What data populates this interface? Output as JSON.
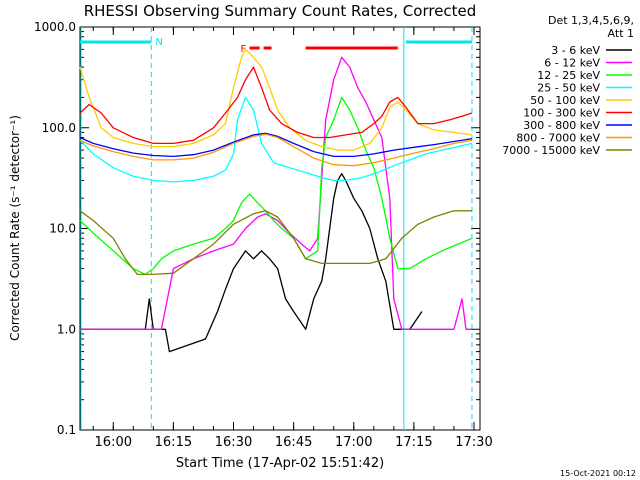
{
  "chart_data": {
    "type": "line",
    "title": "RHESSI Observing Summary Count Rates, Corrected",
    "xlabel": "Start Time (17-Apr-02 15:51:42)",
    "ylabel": "Corrected Count Rate (s⁻¹ detector⁻¹)",
    "y_scale": "log",
    "ylim": [
      0.1,
      1000
    ],
    "xlim_minutes": [
      "15:51:42",
      "17:31:30"
    ],
    "x_ticks": [
      "16:00",
      "16:15",
      "16:30",
      "16:45",
      "17:00",
      "17:15",
      "17:30"
    ],
    "y_ticks": [
      "0.1",
      "1.0",
      "10.0",
      "100.0",
      "1000.0"
    ],
    "detector_info": "Det 1,3,4,5,6,9,",
    "attenuator_info": "Att 1",
    "timestamp": "15-Oct-2021 00:12",
    "night_marker": "N",
    "flare_marker": "F",
    "night_intervals": [
      [
        "15:51:42",
        "16:09:30"
      ],
      [
        "17:13:00",
        "17:29:30"
      ]
    ],
    "flare_intervals": [
      [
        "16:34:00",
        "16:36:30"
      ],
      [
        "16:37:30",
        "16:39:30"
      ],
      [
        "16:48:00",
        "17:11:00"
      ]
    ],
    "vertical_markers": [
      {
        "time": "16:09:30",
        "style": "dashed"
      },
      {
        "time": "17:12:30",
        "style": "solid"
      },
      {
        "time": "17:29:30",
        "style": "dashed"
      }
    ],
    "series": [
      {
        "name": "3 - 6 keV",
        "color": "#000000",
        "points": [
          [
            "15:51:42",
            1.0
          ],
          [
            "16:00",
            1.0
          ],
          [
            "16:08",
            1.0
          ],
          [
            "16:09",
            2.0
          ],
          [
            "16:10",
            1.0
          ],
          [
            "16:11",
            1.0
          ],
          [
            "16:12",
            1.0
          ],
          [
            "16:13",
            1.0
          ],
          [
            "16:14",
            0.6
          ],
          [
            "16:23",
            0.8
          ],
          [
            "16:26",
            1.5
          ],
          [
            "16:28",
            2.5
          ],
          [
            "16:30",
            4.0
          ],
          [
            "16:33",
            6.0
          ],
          [
            "16:35",
            5.0
          ],
          [
            "16:37",
            6.0
          ],
          [
            "16:39",
            5.0
          ],
          [
            "16:41",
            4.0
          ],
          [
            "16:43",
            2.0
          ],
          [
            "16:45",
            1.5
          ],
          [
            "16:48",
            1.0
          ],
          [
            "16:50",
            2.0
          ],
          [
            "16:52",
            3.0
          ],
          [
            "16:53",
            5.0
          ],
          [
            "16:54",
            10.0
          ],
          [
            "16:55",
            20.0
          ],
          [
            "16:56",
            30.0
          ],
          [
            "16:57",
            35.0
          ],
          [
            "16:58",
            30.0
          ],
          [
            "17:00",
            20.0
          ],
          [
            "17:02",
            15.0
          ],
          [
            "17:04",
            10.0
          ],
          [
            "17:06",
            5.0
          ],
          [
            "17:08",
            3.0
          ],
          [
            "17:10",
            1.0
          ],
          [
            "17:14",
            1.0
          ],
          [
            "17:17",
            1.5
          ]
        ]
      },
      {
        "name": "6 - 12 keV",
        "color": "#ff00ff",
        "points": [
          [
            "15:51:42",
            1.0
          ],
          [
            "16:08",
            1.0
          ],
          [
            "16:10",
            1.0
          ],
          [
            "16:12",
            1.0
          ],
          [
            "16:15",
            4.0
          ],
          [
            "16:20",
            5.0
          ],
          [
            "16:25",
            6.0
          ],
          [
            "16:30",
            7.0
          ],
          [
            "16:33",
            10.0
          ],
          [
            "16:36",
            13.0
          ],
          [
            "16:38",
            14.0
          ],
          [
            "16:41",
            12.0
          ],
          [
            "16:44",
            9.0
          ],
          [
            "16:47",
            7.0
          ],
          [
            "16:49",
            6.0
          ],
          [
            "16:51",
            8.0
          ],
          [
            "16:53",
            120.0
          ],
          [
            "16:55",
            300.0
          ],
          [
            "16:57",
            500.0
          ],
          [
            "16:59",
            400.0
          ],
          [
            "17:01",
            250.0
          ],
          [
            "17:03",
            180.0
          ],
          [
            "17:05",
            120.0
          ],
          [
            "17:07",
            80.0
          ],
          [
            "17:09",
            20.0
          ],
          [
            "17:10",
            2.0
          ],
          [
            "17:12",
            1.0
          ],
          [
            "17:15",
            1.0
          ],
          [
            "17:25",
            1.0
          ],
          [
            "17:27",
            2.0
          ],
          [
            "17:28",
            1.0
          ],
          [
            "17:29:30",
            1.0
          ]
        ]
      },
      {
        "name": "12 - 25 keV",
        "color": "#00ff00",
        "points": [
          [
            "15:51:42",
            12.0
          ],
          [
            "15:55",
            9.0
          ],
          [
            "16:00",
            6.0
          ],
          [
            "16:05",
            4.0
          ],
          [
            "16:08",
            3.5
          ],
          [
            "16:10",
            4.0
          ],
          [
            "16:12",
            5.0
          ],
          [
            "16:15",
            6.0
          ],
          [
            "16:20",
            7.0
          ],
          [
            "16:25",
            8.0
          ],
          [
            "16:28",
            10.0
          ],
          [
            "16:30",
            12.0
          ],
          [
            "16:32",
            18.0
          ],
          [
            "16:34",
            22.0
          ],
          [
            "16:36",
            18.0
          ],
          [
            "16:38",
            15.0
          ],
          [
            "16:40",
            12.0
          ],
          [
            "16:42",
            10.0
          ],
          [
            "16:45",
            8.0
          ],
          [
            "16:48",
            5.0
          ],
          [
            "16:51",
            6.0
          ],
          [
            "16:52",
            40.0
          ],
          [
            "16:53",
            80.0
          ],
          [
            "16:55",
            120.0
          ],
          [
            "16:57",
            200.0
          ],
          [
            "16:59",
            150.0
          ],
          [
            "17:01",
            100.0
          ],
          [
            "17:03",
            60.0
          ],
          [
            "17:05",
            40.0
          ],
          [
            "17:07",
            20.0
          ],
          [
            "17:09",
            8.0
          ],
          [
            "17:11",
            4.0
          ],
          [
            "17:14",
            4.0
          ],
          [
            "17:18",
            5.0
          ],
          [
            "17:22",
            6.0
          ],
          [
            "17:26",
            7.0
          ],
          [
            "17:29:30",
            8.0
          ]
        ]
      },
      {
        "name": "25 - 50 keV",
        "color": "#00ffff",
        "points": [
          [
            "15:51:42",
            75.0
          ],
          [
            "15:55",
            55.0
          ],
          [
            "16:00",
            40.0
          ],
          [
            "16:05",
            33.0
          ],
          [
            "16:10",
            30.0
          ],
          [
            "16:15",
            29.0
          ],
          [
            "16:20",
            30.0
          ],
          [
            "16:25",
            33.0
          ],
          [
            "16:28",
            38.0
          ],
          [
            "16:30",
            55.0
          ],
          [
            "16:31",
            120.0
          ],
          [
            "16:33",
            200.0
          ],
          [
            "16:35",
            150.0
          ],
          [
            "16:37",
            70.0
          ],
          [
            "16:40",
            45.0
          ],
          [
            "16:44",
            40.0
          ],
          [
            "16:48",
            36.0
          ],
          [
            "16:52",
            32.0
          ],
          [
            "16:55",
            30.0
          ],
          [
            "16:58",
            30.0
          ],
          [
            "17:02",
            32.0
          ],
          [
            "17:06",
            36.0
          ],
          [
            "17:10",
            42.0
          ],
          [
            "17:14",
            48.0
          ],
          [
            "17:18",
            55.0
          ],
          [
            "17:22",
            60.0
          ],
          [
            "17:26",
            65.0
          ],
          [
            "17:29:30",
            70.0
          ]
        ]
      },
      {
        "name": "50 - 100 keV",
        "color": "#ffcc00",
        "points": [
          [
            "15:51:42",
            400.0
          ],
          [
            "15:54",
            200.0
          ],
          [
            "15:57",
            100.0
          ],
          [
            "16:00",
            80.0
          ],
          [
            "16:05",
            70.0
          ],
          [
            "16:10",
            65.0
          ],
          [
            "16:15",
            65.0
          ],
          [
            "16:20",
            70.0
          ],
          [
            "16:25",
            85.0
          ],
          [
            "16:28",
            110.0
          ],
          [
            "16:30",
            250.0
          ],
          [
            "16:32",
            500.0
          ],
          [
            "16:33",
            600.0
          ],
          [
            "16:35",
            500.0
          ],
          [
            "16:37",
            400.0
          ],
          [
            "16:39",
            250.0
          ],
          [
            "16:41",
            150.0
          ],
          [
            "16:44",
            100.0
          ],
          [
            "16:48",
            75.0
          ],
          [
            "16:52",
            65.0
          ],
          [
            "16:56",
            60.0
          ],
          [
            "17:00",
            60.0
          ],
          [
            "17:04",
            70.0
          ],
          [
            "17:07",
            100.0
          ],
          [
            "17:09",
            160.0
          ],
          [
            "17:11",
            180.0
          ],
          [
            "17:13",
            150.0
          ],
          [
            "17:16",
            110.0
          ],
          [
            "17:20",
            95.0
          ],
          [
            "17:25",
            90.0
          ],
          [
            "17:29:30",
            85.0
          ]
        ]
      },
      {
        "name": "100 - 300 keV",
        "color": "#ff0000",
        "points": [
          [
            "15:51:42",
            140.0
          ],
          [
            "15:54",
            170.0
          ],
          [
            "15:57",
            140.0
          ],
          [
            "16:00",
            100.0
          ],
          [
            "16:05",
            80.0
          ],
          [
            "16:10",
            70.0
          ],
          [
            "16:15",
            70.0
          ],
          [
            "16:20",
            75.0
          ],
          [
            "16:25",
            100.0
          ],
          [
            "16:28",
            140.0
          ],
          [
            "16:31",
            200.0
          ],
          [
            "16:33",
            300.0
          ],
          [
            "16:35",
            400.0
          ],
          [
            "16:37",
            250.0
          ],
          [
            "16:39",
            150.0
          ],
          [
            "16:42",
            110.0
          ],
          [
            "16:46",
            90.0
          ],
          [
            "16:50",
            80.0
          ],
          [
            "16:54",
            80.0
          ],
          [
            "16:58",
            85.0
          ],
          [
            "17:02",
            90.0
          ],
          [
            "17:05",
            110.0
          ],
          [
            "17:07",
            130.0
          ],
          [
            "17:09",
            180.0
          ],
          [
            "17:11",
            200.0
          ],
          [
            "17:13",
            160.0
          ],
          [
            "17:16",
            110.0
          ],
          [
            "17:20",
            110.0
          ],
          [
            "17:24",
            120.0
          ],
          [
            "17:27",
            130.0
          ],
          [
            "17:29:30",
            140.0
          ]
        ]
      },
      {
        "name": "300 - 800 keV",
        "color": "#0000ff",
        "points": [
          [
            "15:51:42",
            80.0
          ],
          [
            "15:55",
            70.0
          ],
          [
            "16:00",
            62.0
          ],
          [
            "16:05",
            56.0
          ],
          [
            "16:10",
            53.0
          ],
          [
            "16:15",
            52.0
          ],
          [
            "16:20",
            54.0
          ],
          [
            "16:25",
            60.0
          ],
          [
            "16:30",
            72.0
          ],
          [
            "16:35",
            85.0
          ],
          [
            "16:38",
            88.0
          ],
          [
            "16:41",
            82.0
          ],
          [
            "16:45",
            70.0
          ],
          [
            "16:50",
            58.0
          ],
          [
            "16:55",
            52.0
          ],
          [
            "17:00",
            52.0
          ],
          [
            "17:05",
            55.0
          ],
          [
            "17:10",
            60.0
          ],
          [
            "17:15",
            64.0
          ],
          [
            "17:20",
            68.0
          ],
          [
            "17:25",
            73.0
          ],
          [
            "17:29:30",
            78.0
          ]
        ]
      },
      {
        "name": "800 - 7000 keV",
        "color": "#ff9900",
        "points": [
          [
            "15:51:42",
            75.0
          ],
          [
            "15:55",
            66.0
          ],
          [
            "16:00",
            58.0
          ],
          [
            "16:05",
            52.0
          ],
          [
            "16:10",
            48.0
          ],
          [
            "16:15",
            48.0
          ],
          [
            "16:20",
            50.0
          ],
          [
            "16:25",
            57.0
          ],
          [
            "16:30",
            70.0
          ],
          [
            "16:35",
            82.0
          ],
          [
            "16:38",
            86.0
          ],
          [
            "16:41",
            80.0
          ],
          [
            "16:45",
            65.0
          ],
          [
            "16:50",
            50.0
          ],
          [
            "16:55",
            43.0
          ],
          [
            "17:00",
            42.0
          ],
          [
            "17:05",
            45.0
          ],
          [
            "17:10",
            50.0
          ],
          [
            "17:15",
            56.0
          ],
          [
            "17:20",
            62.0
          ],
          [
            "17:25",
            70.0
          ],
          [
            "17:29:30",
            75.0
          ]
        ]
      },
      {
        "name": "7000 - 15000 keV",
        "color": "#808000",
        "points": [
          [
            "15:51:42",
            15.0
          ],
          [
            "15:55",
            12.0
          ],
          [
            "16:00",
            8.0
          ],
          [
            "16:03",
            5.0
          ],
          [
            "16:06",
            3.5
          ],
          [
            "16:10",
            3.5
          ],
          [
            "16:15",
            3.6
          ],
          [
            "16:20",
            5.0
          ],
          [
            "16:25",
            7.0
          ],
          [
            "16:30",
            11.0
          ],
          [
            "16:35",
            14.0
          ],
          [
            "16:38",
            15.0
          ],
          [
            "16:41",
            13.0
          ],
          [
            "16:45",
            8.0
          ],
          [
            "16:48",
            5.0
          ],
          [
            "16:52",
            4.5
          ],
          [
            "16:58",
            4.5
          ],
          [
            "17:04",
            4.5
          ],
          [
            "17:08",
            5.0
          ],
          [
            "17:12",
            8.0
          ],
          [
            "17:16",
            11.0
          ],
          [
            "17:20",
            13.0
          ],
          [
            "17:25",
            15.0
          ],
          [
            "17:29:30",
            15.0
          ]
        ]
      }
    ]
  }
}
